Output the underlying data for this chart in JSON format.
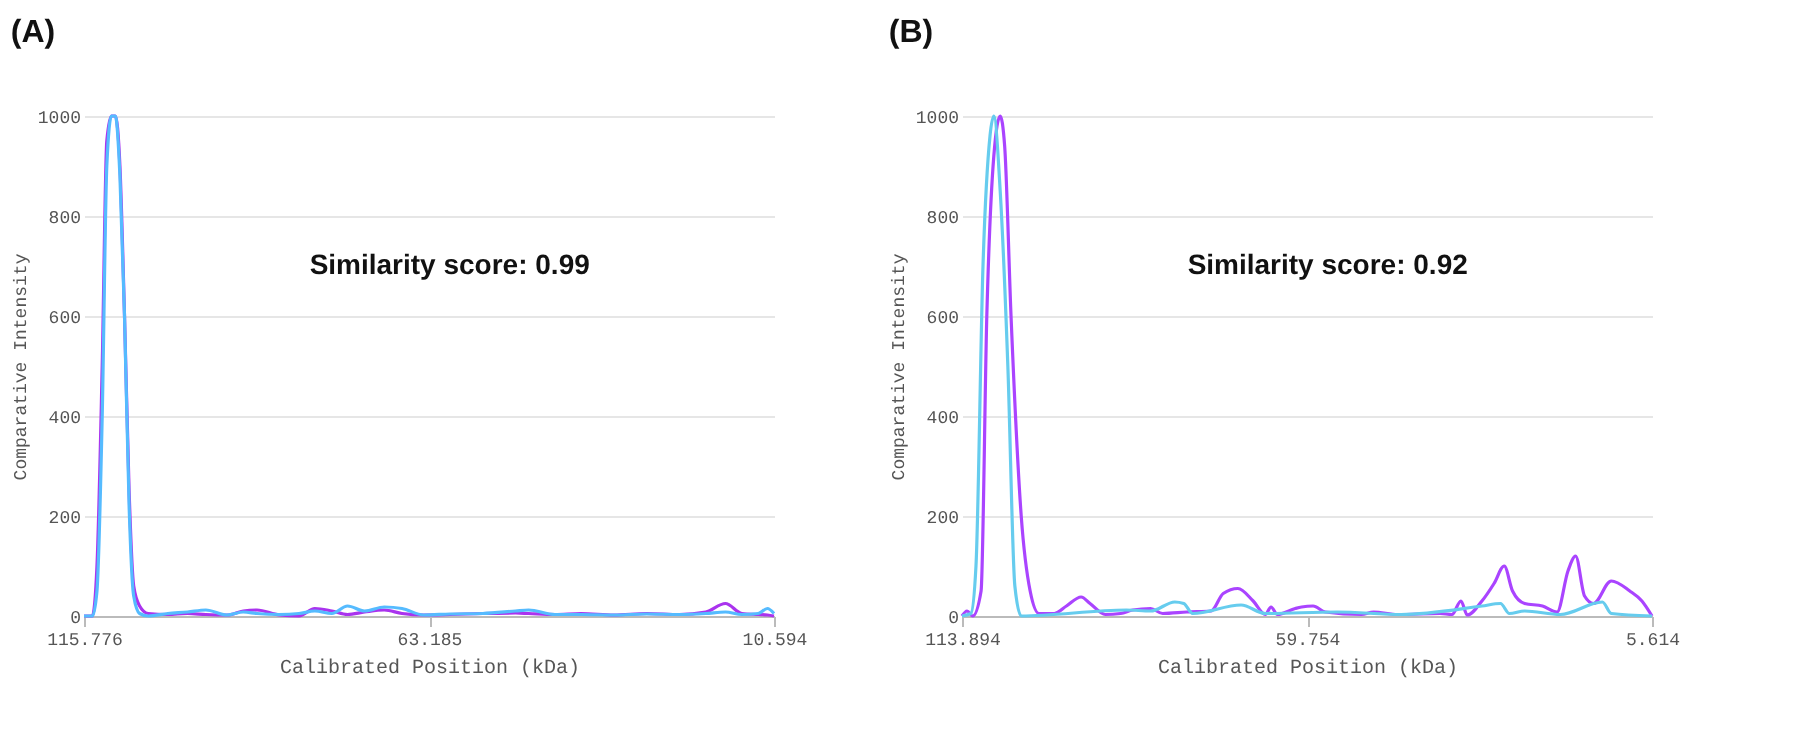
{
  "chart_data": [
    {
      "type": "line",
      "title": "(A)",
      "xlabel": "Calibrated Position (kDa)",
      "ylabel": "Comparative Intensity",
      "annotations": [
        "Similarity score: 0.99"
      ],
      "xlim": [
        115.776,
        10.594
      ],
      "xticks": [
        115.776,
        63.185,
        10.594
      ],
      "ylim": [
        0,
        1000
      ],
      "yticks": [
        0,
        200,
        400,
        600,
        800,
        1000
      ],
      "grid": "y",
      "legend": false,
      "marker": "none",
      "line_style": "solid",
      "series": [
        {
          "color": "#aa33ee",
          "x": [
            115.776,
            114.5,
            113.8,
            113.0,
            112.3,
            111.6,
            111.0,
            110.3,
            109.6,
            108.9,
            108.2,
            107.3,
            106.0,
            103,
            100,
            97.2,
            94,
            91.5,
            89.4,
            86,
            83,
            80.6,
            78,
            75.6,
            73,
            70,
            67.3,
            64,
            60,
            55,
            50,
            48,
            44,
            40,
            35,
            30,
            25,
            21,
            18,
            15.5,
            13,
            11.6,
            10.594
          ],
          "values": [
            0,
            0,
            100,
            500,
            950,
            1000,
            1000,
            900,
            600,
            250,
            60,
            20,
            5,
            3,
            5,
            3,
            2,
            10,
            12,
            2,
            0,
            15,
            10,
            3,
            8,
            12,
            5,
            2,
            3,
            5,
            6,
            5,
            3,
            5,
            2,
            5,
            3,
            8,
            25,
            5,
            3,
            2,
            0
          ]
        },
        {
          "color": "#55bbff",
          "x": [
            115.776,
            114.5,
            113.8,
            113.0,
            112.3,
            111.6,
            111.0,
            110.3,
            109.6,
            108.9,
            108.2,
            107.3,
            106.0,
            103,
            100,
            97.2,
            94,
            91.5,
            89.4,
            86,
            83,
            80.6,
            78,
            75.6,
            73,
            70,
            67.3,
            64,
            60,
            55,
            50,
            48,
            44,
            40,
            35,
            30,
            25,
            21,
            18,
            15.5,
            13,
            11.6,
            10.594
          ],
          "values": [
            0,
            0,
            50,
            400,
            900,
            1000,
            1000,
            880,
            600,
            220,
            40,
            5,
            0,
            5,
            8,
            12,
            2,
            8,
            5,
            3,
            5,
            10,
            5,
            20,
            10,
            18,
            15,
            2,
            4,
            5,
            10,
            12,
            3,
            3,
            2,
            4,
            3,
            5,
            8,
            3,
            5,
            15,
            5
          ]
        }
      ]
    },
    {
      "type": "line",
      "title": "(B)",
      "xlabel": "Calibrated Position (kDa)",
      "ylabel": "Comparative Intensity",
      "annotations": [
        "Similarity score: 0.92"
      ],
      "xlim": [
        113.894,
        5.614
      ],
      "xticks": [
        113.894,
        59.754,
        5.614
      ],
      "ylim": [
        0,
        1000
      ],
      "yticks": [
        0,
        200,
        400,
        600,
        800,
        1000
      ],
      "grid": "y",
      "legend": false,
      "marker": "none",
      "line_style": "solid",
      "series": [
        {
          "color": "#aa44ff",
          "x": [
            113.894,
            113.1,
            112.2,
            110.9,
            110.0,
            108.9,
            107.9,
            107.2,
            106.2,
            104.6,
            103.2,
            101.8,
            99.4,
            97.5,
            95.2,
            93.8,
            91.4,
            89.0,
            87.1,
            84.3,
            82.4,
            78.6,
            74.8,
            72.9,
            70.6,
            68.2,
            66.3,
            65.4,
            64.4,
            61.6,
            60.6,
            58.8,
            56.9,
            51.2,
            49.3,
            45.5,
            38.9,
            37.0,
            35.6,
            34.6,
            32.3,
            30.4,
            28.8,
            27.5,
            25.6,
            22.8,
            20.5,
            18.8,
            17.6,
            16.2,
            14.8,
            12.0,
            9.1,
            7.2,
            5.614
          ],
          "values": [
            0,
            10,
            0,
            50,
            600,
            920,
            1000,
            940,
            600,
            200,
            50,
            5,
            5,
            20,
            38,
            25,
            3,
            5,
            12,
            15,
            5,
            8,
            10,
            45,
            55,
            30,
            3,
            18,
            3,
            15,
            18,
            20,
            8,
            3,
            8,
            3,
            5,
            3,
            30,
            2,
            30,
            65,
            100,
            50,
            25,
            20,
            8,
            90,
            120,
            40,
            25,
            70,
            50,
            30,
            0
          ]
        },
        {
          "color": "#66ccee",
          "x": [
            113.894,
            112.5,
            111.7,
            110.6,
            109.5,
            108.9,
            107.9,
            106.7,
            105.6,
            104.6,
            88.1,
            84.3,
            80.5,
            79.1,
            77.7,
            70.1,
            66.3,
            55.0,
            45.0,
            32.3,
            29.4,
            28.0,
            25.6,
            20.0,
            13.4,
            12.0,
            5.614
          ],
          "values": [
            0,
            5,
            100,
            700,
            960,
            1000,
            850,
            500,
            60,
            0,
            12,
            10,
            28,
            25,
            5,
            22,
            5,
            8,
            3,
            20,
            25,
            5,
            10,
            3,
            28,
            5,
            0
          ]
        }
      ]
    }
  ]
}
